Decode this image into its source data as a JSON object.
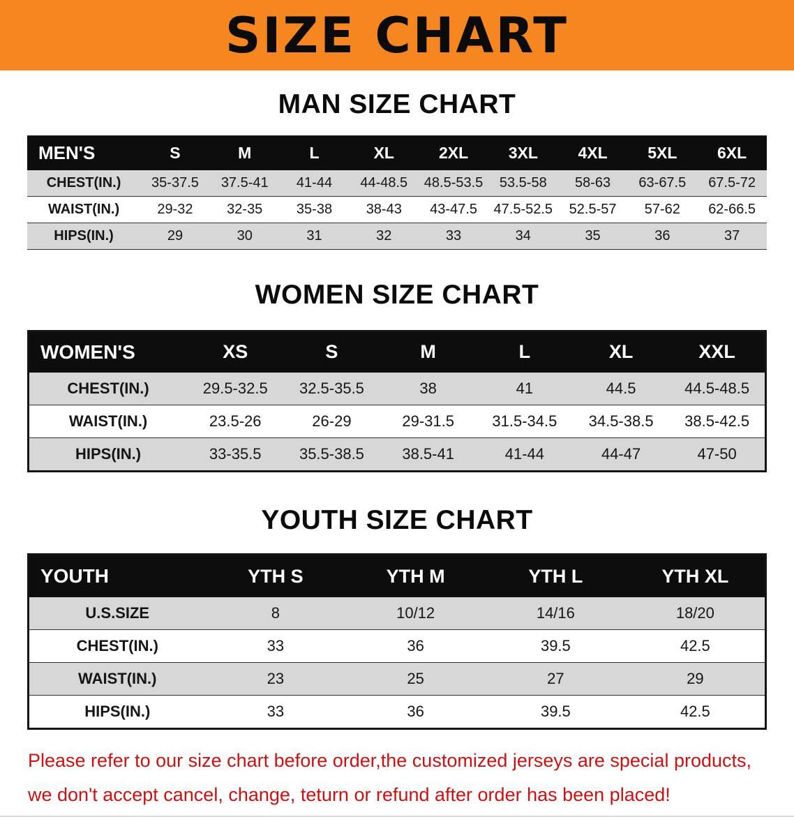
{
  "banner": {
    "title": "SIZE CHART"
  },
  "sections": [
    {
      "heading": "MAN SIZE CHART",
      "table": {
        "header": [
          "MEN'S",
          "S",
          "M",
          "L",
          "XL",
          "2XL",
          "3XL",
          "4XL",
          "5XL",
          "6XL"
        ],
        "rows": [
          [
            "CHEST(IN.)",
            "35-37.5",
            "37.5-41",
            "41-44",
            "44-48.5",
            "48.5-53.5",
            "53.5-58",
            "58-63",
            "63-67.5",
            "67.5-72"
          ],
          [
            "WAIST(IN.)",
            "29-32",
            "32-35",
            "35-38",
            "38-43",
            "43-47.5",
            "47.5-52.5",
            "52.5-57",
            "57-62",
            "62-66.5"
          ],
          [
            "HIPS(IN.)",
            "29",
            "30",
            "31",
            "32",
            "33",
            "34",
            "35",
            "36",
            "37"
          ]
        ]
      }
    },
    {
      "heading": "WOMEN SIZE CHART",
      "table": {
        "header": [
          "WOMEN'S",
          "XS",
          "S",
          "M",
          "L",
          "XL",
          "XXL"
        ],
        "rows": [
          [
            "CHEST(IN.)",
            "29.5-32.5",
            "32.5-35.5",
            "38",
            "41",
            "44.5",
            "44.5-48.5"
          ],
          [
            "WAIST(IN.)",
            "23.5-26",
            "26-29",
            "29-31.5",
            "31.5-34.5",
            "34.5-38.5",
            "38.5-42.5"
          ],
          [
            "HIPS(IN.)",
            "33-35.5",
            "35.5-38.5",
            "38.5-41",
            "41-44",
            "44-47",
            "47-50"
          ]
        ]
      }
    },
    {
      "heading": "YOUTH SIZE CHART",
      "table": {
        "header": [
          "YOUTH",
          "YTH S",
          "YTH M",
          "YTH L",
          "YTH XL"
        ],
        "rows": [
          [
            "U.S.SIZE",
            "8",
            "10/12",
            "14/16",
            "18/20"
          ],
          [
            "CHEST(IN.)",
            "33",
            "36",
            "39.5",
            "42.5"
          ],
          [
            "WAIST(IN.)",
            "23",
            "25",
            "27",
            "29"
          ],
          [
            "HIPS(IN.)",
            "33",
            "36",
            "39.5",
            "42.5"
          ]
        ]
      }
    }
  ],
  "footer": {
    "lines": [
      "Please refer to our size chart before order,the customized jerseys are special products,",
      "we don't accept cancel, change, teturn or refund after order has been placed!"
    ]
  },
  "colors": {
    "banner_orange": "#f6861f",
    "table_header_black": "#0d0d0d",
    "stripe_gray": "#d7d7d7",
    "notice_red": "#cc1111"
  }
}
